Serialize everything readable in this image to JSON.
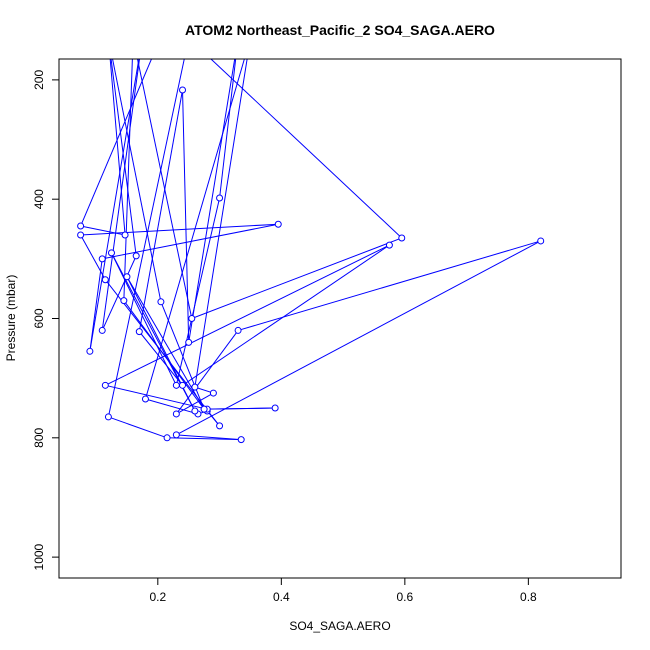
{
  "chart_data": {
    "type": "line",
    "title": "ATOM2 Northeast_Pacific_2 SO4_SAGA.AERO",
    "xlabel": "SO4_SAGA.AERO",
    "ylabel": "Pressure (mbar)",
    "xlim": [
      0.04,
      0.95
    ],
    "ylim": [
      1035,
      165
    ],
    "y_reversed": true,
    "grid": false,
    "x_ticks": [
      0.2,
      0.4,
      0.6,
      0.8
    ],
    "x_tick_labels": [
      "0.2",
      "0.4",
      "0.6",
      "0.8"
    ],
    "y_ticks": [
      200,
      400,
      600,
      800,
      1000
    ],
    "y_tick_labels": [
      "200",
      "400",
      "600",
      "800",
      "1000"
    ],
    "series_color": "#0000ff",
    "x": [
      0.2,
      0.075,
      0.147,
      0.12,
      0.165,
      0.11,
      0.175,
      0.09,
      0.11,
      0.395,
      0.075,
      0.115,
      0.3,
      0.28,
      0.265,
      0.18,
      0.35,
      0.26,
      0.29,
      0.23,
      0.33,
      0.82,
      0.23,
      0.335,
      0.215,
      0.12,
      0.25,
      0.595,
      0.255,
      0.16,
      0.145,
      0.275,
      0.15,
      0.26,
      0.125,
      0.23,
      0.3,
      0.33,
      0.25,
      0.24,
      0.17,
      0.24,
      0.575,
      0.115,
      0.28,
      0.39,
      0.275,
      0.205,
      0.12
    ],
    "y": [
      140,
      445,
      460,
      130,
      495,
      620,
      130,
      655,
      500,
      442,
      460,
      535,
      780,
      755,
      760,
      735,
      130,
      715,
      725,
      760,
      620,
      470,
      795,
      803,
      800,
      765,
      130,
      465,
      600,
      130,
      570,
      752,
      530,
      755,
      490,
      712,
      398,
      130,
      640,
      217,
      622,
      712,
      477,
      712,
      752,
      750,
      752,
      572,
      130
    ]
  }
}
